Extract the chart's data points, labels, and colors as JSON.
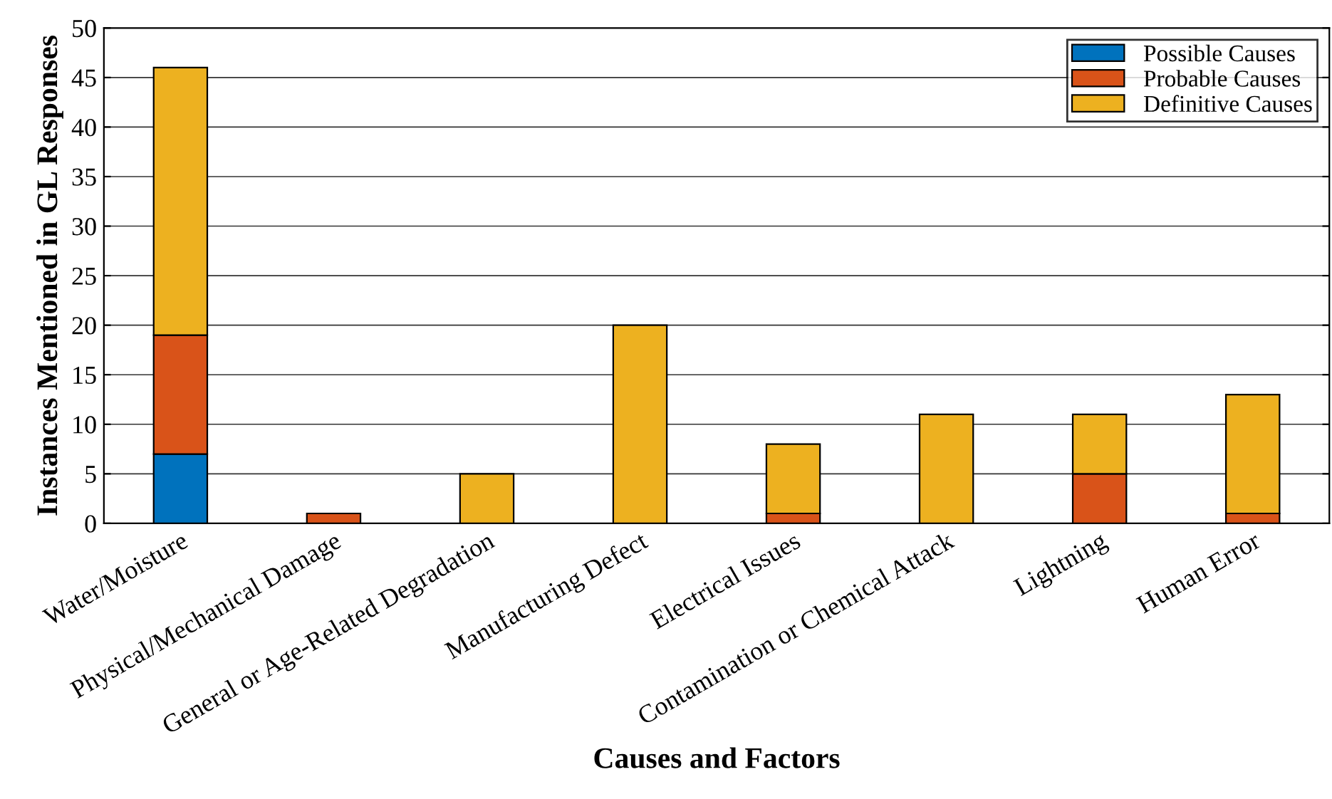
{
  "chart_data": {
    "type": "bar",
    "stacked": true,
    "xlabel": "Causes and Factors",
    "ylabel": "Instances Mentioned in GL Responses",
    "categories": [
      "Water/Moisture",
      "Physical/Mechanical Damage",
      "General or Age-Related Degradation",
      "Manufacturing Defect",
      "Electrical Issues",
      "Contamination or Chemical Attack",
      "Lightning",
      "Human Error"
    ],
    "series": [
      {
        "name": "Possible Causes",
        "color": "#0072bd",
        "values": [
          7,
          0,
          0,
          0,
          0,
          0,
          0,
          0
        ]
      },
      {
        "name": "Probable Causes",
        "color": "#d95319",
        "values": [
          12,
          1,
          0,
          0,
          1,
          0,
          5,
          1
        ]
      },
      {
        "name": "Definitive Causes",
        "color": "#edb120",
        "values": [
          27,
          0,
          5,
          20,
          7,
          11,
          6,
          12
        ]
      }
    ],
    "ylim": [
      0,
      50
    ],
    "yticks": [
      0,
      5,
      10,
      15,
      20,
      25,
      30,
      35,
      40,
      45,
      50
    ],
    "grid": "y",
    "legend": "top right"
  }
}
